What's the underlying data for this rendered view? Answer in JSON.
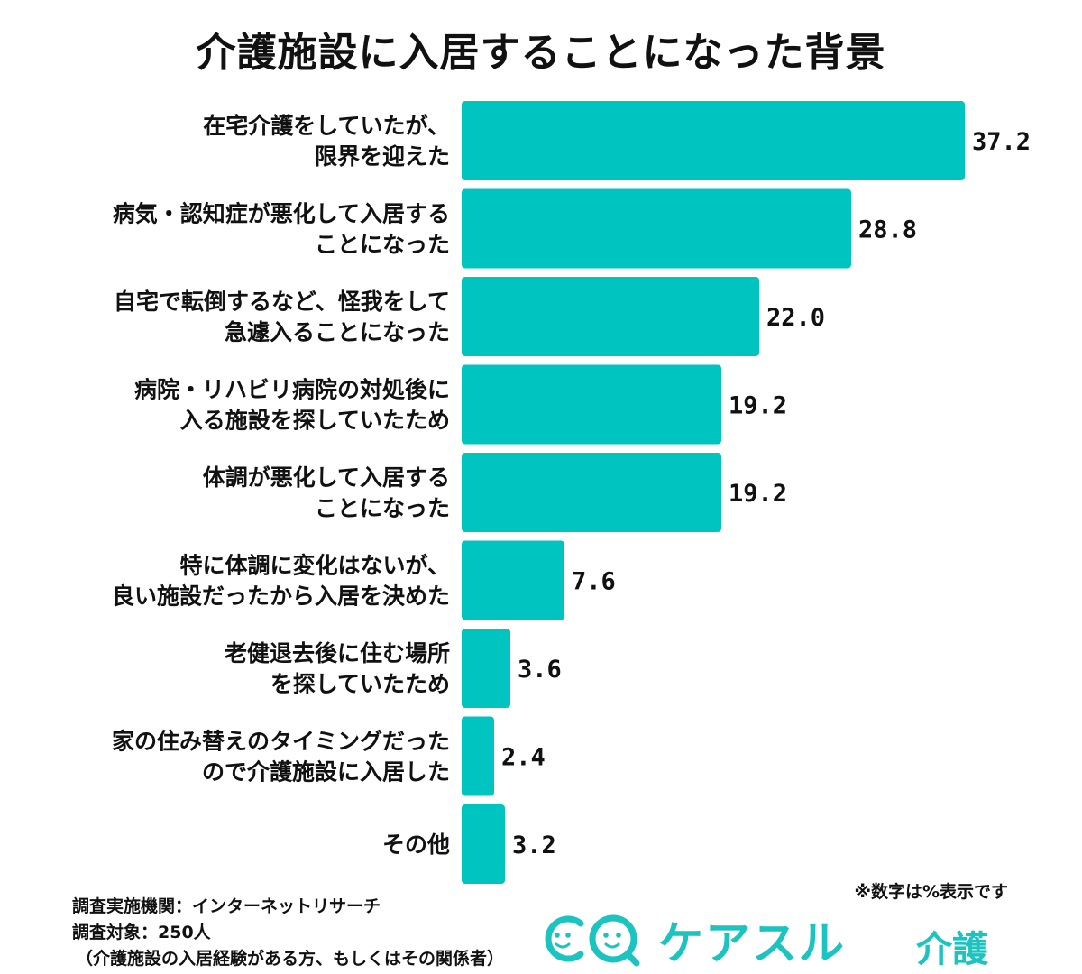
{
  "chart_data": {
    "type": "bar",
    "orientation": "horizontal",
    "title": "介護施設に入居することになった背景",
    "categories": [
      [
        "在宅介護をしていたが、",
        "限界を迎えた"
      ],
      [
        "病気・認知症が悪化して入居する",
        "ことになった"
      ],
      [
        "自宅で転倒するなど、怪我をして",
        "急遽入ることになった"
      ],
      [
        "病院・リハビリ病院の対処後に",
        "入る施設を探していたため"
      ],
      [
        "体調が悪化して入居する",
        "ことになった"
      ],
      [
        "特に体調に変化はないが、",
        "良い施設だったから入居を決めた"
      ],
      [
        "老健退去後に住む場所",
        "を探していたため"
      ],
      [
        "家の住み替えのタイミングだった",
        "ので介護施設に入居した"
      ],
      [
        "その他"
      ]
    ],
    "values": [
      37.2,
      28.8,
      22.0,
      19.2,
      19.2,
      7.6,
      3.6,
      2.4,
      3.2
    ],
    "value_labels": [
      "37.2",
      "28.8",
      "22.0",
      "19.2",
      "19.2",
      "7.6",
      "3.6",
      "2.4",
      "3.2"
    ],
    "xlim": [
      0,
      37.2
    ],
    "bar_color": "#00c4c0",
    "grid": false
  },
  "footer": {
    "source": "調査実施機関：インターネットリサーチ",
    "target": "調査対象：250人",
    "target_detail": "（介護施設の入居経験がある方、もしくはその関係者）",
    "note": "※数字は%表示です"
  },
  "logo": {
    "text": "ケアスル",
    "sub": "介護",
    "icon": "smiling-faces-logo-icon",
    "color": "#1cc4c1"
  }
}
